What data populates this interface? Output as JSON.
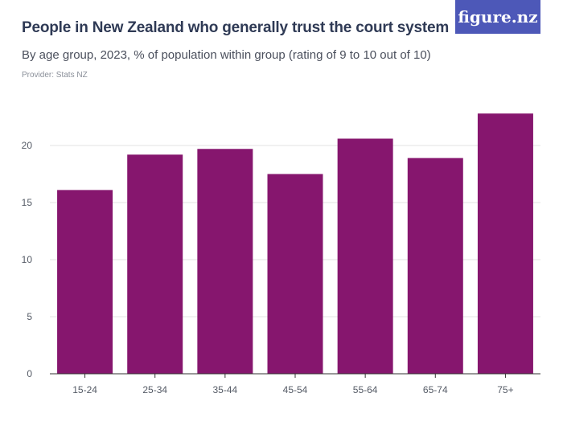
{
  "header": {
    "title": "People in New Zealand who generally trust the court system",
    "subtitle": "By age group, 2023, % of population within group (rating of 9 to 10 out of 10)",
    "provider": "Provider: Stats NZ"
  },
  "brand": {
    "label": "figure.nz",
    "color": "#4d58b8"
  },
  "colors": {
    "bar": "#86166e",
    "grid": "#e3e3e3",
    "axis": "#333333"
  },
  "chart_data": {
    "type": "bar",
    "title": "People in New Zealand who generally trust the court system",
    "subtitle": "By age group, 2023, % of population within group (rating of 9 to 10 out of 10)",
    "categories": [
      "15-24",
      "25-34",
      "35-44",
      "45-54",
      "55-64",
      "65-74",
      "75+"
    ],
    "values": [
      16.1,
      19.2,
      19.7,
      17.5,
      20.6,
      18.9,
      22.8
    ],
    "xlabel": "",
    "ylabel": "",
    "ylim": [
      0,
      25
    ],
    "yticks": [
      0,
      5,
      10,
      15,
      20
    ],
    "grid": true,
    "legend": "none"
  }
}
